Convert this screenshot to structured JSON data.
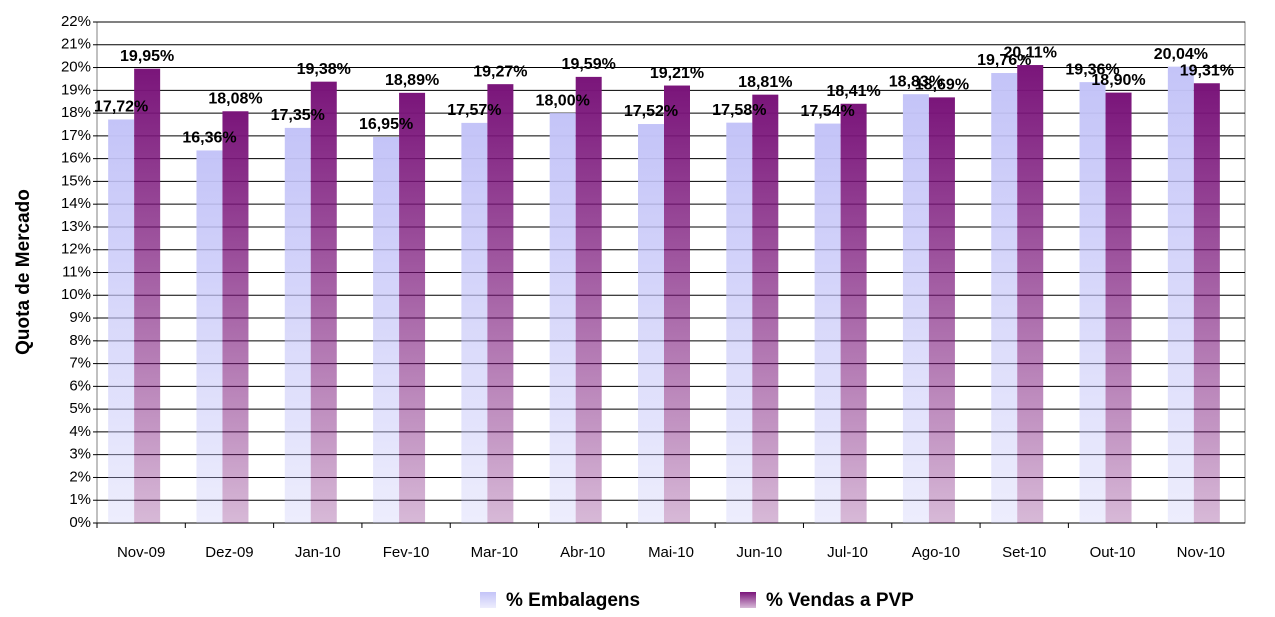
{
  "chart_data": {
    "type": "bar",
    "y_axis_label": "Quota de Mercado",
    "categories": [
      "Nov-09",
      "Dez-09",
      "Jan-10",
      "Fev-10",
      "Mar-10",
      "Abr-10",
      "Mai-10",
      "Jun-10",
      "Jul-10",
      "Ago-10",
      "Set-10",
      "Out-10",
      "Nov-10"
    ],
    "series": [
      {
        "name": "% Embalagens",
        "color": "#c4c4f8",
        "values": [
          17.72,
          16.36,
          17.35,
          16.95,
          17.57,
          18.0,
          17.52,
          17.58,
          17.54,
          18.83,
          19.76,
          19.36,
          20.04
        ],
        "value_labels": [
          "17,72%",
          "16,36%",
          "17,35%",
          "16,95%",
          "17,57%",
          "18,00%",
          "17,52%",
          "17,58%",
          "17,54%",
          "18,83%",
          "19,76%",
          "19,36%",
          "20,04%"
        ]
      },
      {
        "name": "% Vendas a PVP",
        "color": "#7a157a",
        "values": [
          19.95,
          18.08,
          19.38,
          18.89,
          19.27,
          19.59,
          19.21,
          18.81,
          18.41,
          18.69,
          20.11,
          18.9,
          19.31
        ],
        "value_labels": [
          "19,95%",
          "18,08%",
          "19,38%",
          "18,89%",
          "19,27%",
          "19,59%",
          "19,21%",
          "18,81%",
          "18,41%",
          "18,69%",
          "20,11%",
          "18,90%",
          "19,31%"
        ]
      }
    ],
    "ylim": [
      0,
      22
    ],
    "yticks": [
      {
        "value": 0,
        "label": "0%"
      },
      {
        "value": 1,
        "label": "1%"
      },
      {
        "value": 2,
        "label": "2%"
      },
      {
        "value": 3,
        "label": "3%"
      },
      {
        "value": 4,
        "label": "4%"
      },
      {
        "value": 5,
        "label": "5%"
      },
      {
        "value": 6,
        "label": "6%"
      },
      {
        "value": 7,
        "label": "7%"
      },
      {
        "value": 8,
        "label": "8%"
      },
      {
        "value": 9,
        "label": "9%"
      },
      {
        "value": 10,
        "label": "10%"
      },
      {
        "value": 11,
        "label": "11%"
      },
      {
        "value": 12,
        "label": "12%"
      },
      {
        "value": 13,
        "label": "13%"
      },
      {
        "value": 14,
        "label": "14%"
      },
      {
        "value": 15,
        "label": "15%"
      },
      {
        "value": 16,
        "label": "16%"
      },
      {
        "value": 17,
        "label": "17%"
      },
      {
        "value": 18,
        "label": "18%"
      },
      {
        "value": 19,
        "label": "19%"
      },
      {
        "value": 20,
        "label": "20%"
      },
      {
        "value": 21,
        "label": "21%"
      },
      {
        "value": 22,
        "label": "22%"
      }
    ],
    "grid": true,
    "legend": "bottom"
  }
}
